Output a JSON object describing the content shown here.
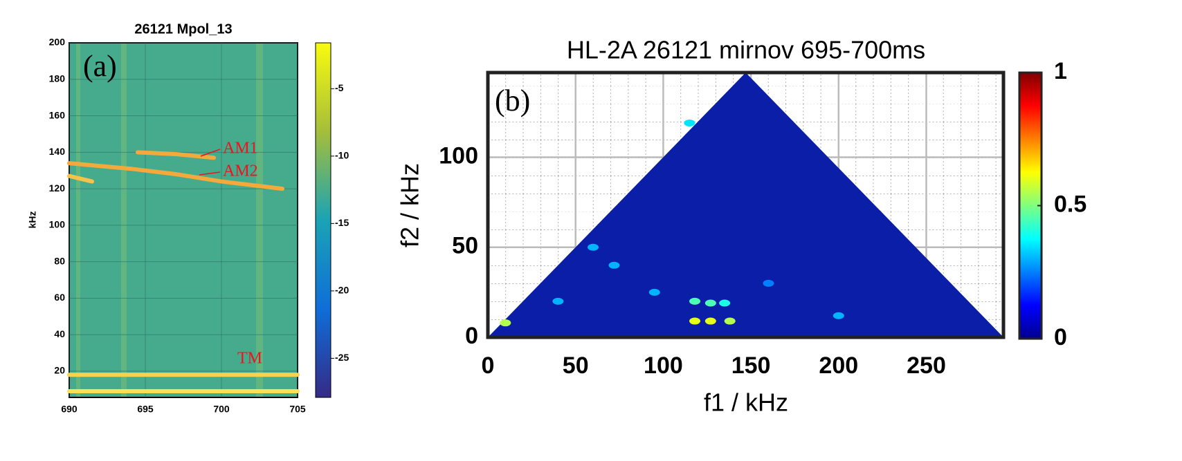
{
  "chart_data": [
    {
      "type": "spectrogram",
      "title": "26121 Mpol_13",
      "ylabel": "kHz",
      "panel_label": "(a)",
      "xlim": [
        690,
        705
      ],
      "xticks": [
        690,
        695,
        700,
        705
      ],
      "ylim": [
        5.6,
        200
      ],
      "yticks": [
        20,
        40,
        60,
        80,
        100,
        120,
        140,
        160,
        180,
        200
      ],
      "series": [
        {
          "color": "#f4a93c",
          "x": [
            694.5,
            697,
            699.5
          ],
          "values": [
            140,
            139,
            137
          ]
        },
        {
          "color": "#f4a93c",
          "x": [
            690,
            694,
            697,
            700,
            704
          ],
          "values": [
            134,
            131,
            128,
            124,
            120
          ]
        },
        {
          "color": "#f6c24a",
          "x": [
            690,
            691.5
          ],
          "values": [
            127,
            124
          ]
        },
        {
          "color": "#f7d24e",
          "x": [
            690,
            705
          ],
          "values": [
            18,
            18
          ]
        },
        {
          "color": "#f9e055",
          "x": [
            690,
            705
          ],
          "values": [
            9,
            9
          ]
        }
      ],
      "annotations": [
        "AM1",
        "AM2",
        "TM"
      ],
      "colorbar": {
        "clim": [
          -27.9,
          -1.6
        ],
        "ticks": [
          -5,
          -10,
          -15,
          -20,
          -25
        ]
      }
    },
    {
      "type": "bicoherence",
      "title": "HL-2A 26121 mirnov 695-700ms",
      "xlabel": "f1 / kHz",
      "ylabel": "f2 / kHz",
      "panel_label": "(b)",
      "xlim": [
        0,
        294
      ],
      "xticks": [
        0,
        50,
        100,
        150,
        200,
        250
      ],
      "ylim": [
        0,
        147
      ],
      "yticks": [
        0,
        50,
        100
      ],
      "grid": true,
      "points": {
        "x": [
          10,
          118,
          127,
          138,
          118,
          127,
          135,
          115,
          60,
          72,
          40,
          200,
          160,
          95
        ],
        "y": [
          8,
          9,
          9,
          9,
          20,
          19,
          19,
          119,
          50,
          40,
          20,
          12,
          30,
          25
        ],
        "values": [
          0.55,
          0.6,
          0.6,
          0.55,
          0.45,
          0.45,
          0.4,
          0.35,
          0.3,
          0.3,
          0.3,
          0.3,
          0.25,
          0.3
        ]
      },
      "colorbar": {
        "clim": [
          0,
          1
        ],
        "ticks": [
          0,
          0.5,
          1
        ]
      }
    }
  ]
}
